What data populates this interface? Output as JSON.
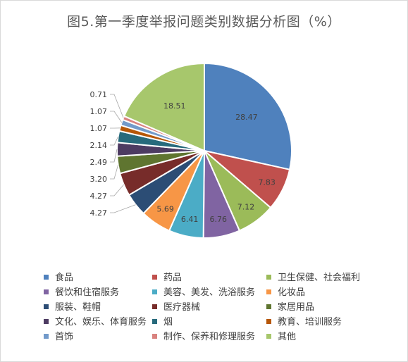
{
  "chart_data": {
    "type": "pie",
    "title": "图5.第一季度举报问题类别数据分析图（%）",
    "series": [
      {
        "name": "食品",
        "value": 28.47,
        "label": "28.47",
        "color": "#4F81BD"
      },
      {
        "name": "药品",
        "value": 7.83,
        "label": "7.83",
        "color": "#C0504D"
      },
      {
        "name": "卫生保健、社会福利",
        "value": 7.12,
        "label": "7.12",
        "color": "#9BBB59"
      },
      {
        "name": "餐饮和住宿服务",
        "value": 6.76,
        "label": "6.76",
        "color": "#8064A2"
      },
      {
        "name": "美容、美发、洗浴服务",
        "value": 6.41,
        "label": "6.41",
        "color": "#4BACC6"
      },
      {
        "name": "化妆品",
        "value": 5.69,
        "label": "5.69",
        "color": "#F79646"
      },
      {
        "name": "服装、鞋帽",
        "value": 4.27,
        "label": "4.27",
        "color": "#2C4D75"
      },
      {
        "name": "医疗器械",
        "value": 4.27,
        "label": "4.27",
        "color": "#772C2A"
      },
      {
        "name": "家居用品",
        "value": 3.2,
        "label": "3.20",
        "color": "#5F7530"
      },
      {
        "name": "文化、娱乐、体育服务",
        "value": 2.49,
        "label": "2.49",
        "color": "#4D3B62"
      },
      {
        "name": "烟",
        "value": 2.14,
        "label": "2.14",
        "color": "#276A7C"
      },
      {
        "name": "教育、培训服务",
        "value": 1.07,
        "label": "1.07",
        "color": "#B65708"
      },
      {
        "name": "首饰",
        "value": 1.07,
        "label": "1.07",
        "color": "#729ACA"
      },
      {
        "name": "制作、保养和修理服务",
        "value": 0.71,
        "label": "0.71",
        "color": "#D9827F"
      },
      {
        "name": "其他",
        "value": 18.51,
        "label": "18.51",
        "color": "#A7C76C"
      }
    ],
    "legend_position": "bottom"
  }
}
